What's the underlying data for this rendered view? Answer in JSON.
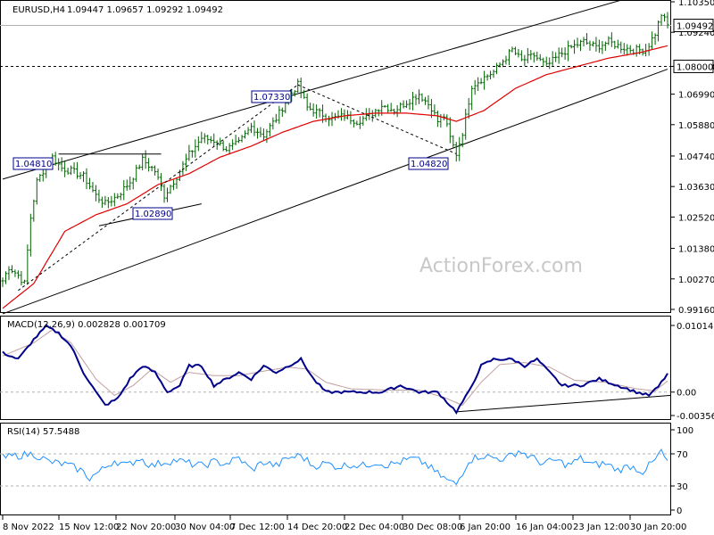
{
  "header": {
    "title": "EURUSD,H4",
    "ohlc": "1.09447 1.09657 1.09292 1.09492"
  },
  "watermark": "ActionForex.com",
  "price_panel": {
    "ticks": [
      "1.10350",
      "1.09240",
      "1.08000",
      "1.06990",
      "1.05880",
      "1.04740",
      "1.03630",
      "1.02520",
      "1.01380",
      "1.00270",
      "0.99160"
    ],
    "current_price": "1.09492",
    "level_line": "1.08000",
    "annotations": [
      "1.07330",
      "1.04810",
      "1.02890",
      "1.04820"
    ]
  },
  "macd_panel": {
    "label": "MACD(12,26,9) 0.002828 0.001709",
    "ticks": [
      "0.010145",
      "0.00",
      "-0.003563"
    ]
  },
  "rsi_panel": {
    "label": "RSI(14) 57.5488",
    "ticks": [
      "100",
      "70",
      "30",
      "0"
    ]
  },
  "x_axis": {
    "ticks": [
      "8 Nov 2022",
      "15 Nov 12:00",
      "22 Nov 20:00",
      "30 Nov 04:00",
      "7 Dec 12:00",
      "14 Dec 20:00",
      "22 Dec 04:00",
      "30 Dec 08:00",
      "6 Jan 20:00",
      "16 Jan 04:00",
      "23 Jan 12:00",
      "30 Jan 20:00"
    ]
  },
  "colors": {
    "candle": "#006400",
    "ma": "#e00000",
    "macd": "#00008b",
    "signal": "#c0a0a0",
    "rsi": "#1e90ff",
    "annotation": "#00008b"
  },
  "chart_data": [
    {
      "type": "candlestick",
      "title": "EURUSD,H4",
      "ylim": [
        0.9916,
        1.1035
      ],
      "x_start": "8 Nov 2022",
      "x_end": "30 Jan 20:00",
      "close_keypoints": [
        [
          0,
          1.002
        ],
        [
          2,
          1.007
        ],
        [
          5,
          1.004
        ],
        [
          7,
          1.001
        ],
        [
          9,
          1.025
        ],
        [
          11,
          1.038
        ],
        [
          13,
          1.042
        ],
        [
          16,
          1.047
        ],
        [
          19,
          1.043
        ],
        [
          22,
          1.042
        ],
        [
          26,
          1.04
        ],
        [
          30,
          1.033
        ],
        [
          33,
          1.03
        ],
        [
          37,
          1.033
        ],
        [
          41,
          1.038
        ],
        [
          45,
          1.046
        ],
        [
          49,
          1.042
        ],
        [
          52,
          1.033
        ],
        [
          56,
          1.04
        ],
        [
          60,
          1.048
        ],
        [
          64,
          1.054
        ],
        [
          68,
          1.053
        ],
        [
          72,
          1.05
        ],
        [
          76,
          1.052
        ],
        [
          80,
          1.058
        ],
        [
          84,
          1.055
        ],
        [
          88,
          1.061
        ],
        [
          92,
          1.069
        ],
        [
          95,
          1.0733
        ],
        [
          98,
          1.065
        ],
        [
          102,
          1.063
        ],
        [
          106,
          1.061
        ],
        [
          110,
          1.062
        ],
        [
          114,
          1.06
        ],
        [
          118,
          1.062
        ],
        [
          122,
          1.066
        ],
        [
          126,
          1.064
        ],
        [
          130,
          1.067
        ],
        [
          134,
          1.07
        ],
        [
          138,
          1.065
        ],
        [
          140,
          1.06
        ],
        [
          142,
          1.062
        ],
        [
          144,
          1.054
        ],
        [
          146,
          1.0482
        ],
        [
          148,
          1.056
        ],
        [
          151,
          1.073
        ],
        [
          155,
          1.076
        ],
        [
          158,
          1.078
        ],
        [
          161,
          1.082
        ],
        [
          164,
          1.086
        ],
        [
          167,
          1.082
        ],
        [
          171,
          1.084
        ],
        [
          175,
          1.08
        ],
        [
          179,
          1.084
        ],
        [
          183,
          1.087
        ],
        [
          187,
          1.089
        ],
        [
          191,
          1.087
        ],
        [
          195,
          1.089
        ],
        [
          199,
          1.087
        ],
        [
          203,
          1.086
        ],
        [
          207,
          1.086
        ],
        [
          210,
          1.092
        ],
        [
          212,
          1.099
        ],
        [
          214,
          1.0949
        ]
      ],
      "moving_average_keypoints": [
        [
          0,
          0.992
        ],
        [
          10,
          1.001
        ],
        [
          20,
          1.02
        ],
        [
          30,
          1.026
        ],
        [
          40,
          1.03
        ],
        [
          50,
          1.037
        ],
        [
          60,
          1.041
        ],
        [
          70,
          1.047
        ],
        [
          80,
          1.051
        ],
        [
          90,
          1.056
        ],
        [
          100,
          1.06
        ],
        [
          110,
          1.062
        ],
        [
          120,
          1.063
        ],
        [
          130,
          1.063
        ],
        [
          140,
          1.062
        ],
        [
          146,
          1.06
        ],
        [
          155,
          1.064
        ],
        [
          165,
          1.072
        ],
        [
          175,
          1.077
        ],
        [
          185,
          1.08
        ],
        [
          195,
          1.083
        ],
        [
          205,
          1.085
        ],
        [
          214,
          1.0875
        ]
      ],
      "channel": [
        {
          "from": [
            0,
            1.039
          ],
          "to": [
            214,
            1.109
          ]
        },
        {
          "from": [
            0,
            0.99
          ],
          "to": [
            214,
            1.079
          ]
        }
      ],
      "horizontal_levels": [
        1.0949,
        1.08
      ],
      "annotations": [
        {
          "label": "1.07330",
          "x": 95,
          "y": 1.0733
        },
        {
          "label": "1.04810",
          "x": 16,
          "y": 1.0481
        },
        {
          "label": "1.02890",
          "x": 42,
          "y": 1.0289
        },
        {
          "label": "1.04820",
          "x": 146,
          "y": 1.0482
        }
      ]
    },
    {
      "type": "line",
      "title": "MACD(12,26,9) 0.002828 0.001709",
      "ylim": [
        -0.003563,
        0.010145
      ],
      "series": [
        {
          "name": "MACD",
          "values": [
            [
              0,
              0.006
            ],
            [
              5,
              0.005
            ],
            [
              10,
              0.008
            ],
            [
              14,
              0.01
            ],
            [
              18,
              0.009
            ],
            [
              22,
              0.007
            ],
            [
              26,
              0.003
            ],
            [
              30,
              0.0
            ],
            [
              33,
              -0.002
            ],
            [
              37,
              -0.001
            ],
            [
              41,
              0.002
            ],
            [
              45,
              0.004
            ],
            [
              49,
              0.003
            ],
            [
              53,
              0.0
            ],
            [
              57,
              0.001
            ],
            [
              60,
              0.004
            ],
            [
              64,
              0.004
            ],
            [
              68,
              0.001
            ],
            [
              72,
              0.002
            ],
            [
              76,
              0.003
            ],
            [
              80,
              0.002
            ],
            [
              84,
              0.004
            ],
            [
              88,
              0.003
            ],
            [
              92,
              0.004
            ],
            [
              96,
              0.005
            ],
            [
              100,
              0.002
            ],
            [
              104,
              0.0
            ],
            [
              110,
              0.0
            ],
            [
              116,
              0.0
            ],
            [
              122,
              0.0
            ],
            [
              128,
              0.001
            ],
            [
              134,
              0.0
            ],
            [
              140,
              0.0
            ],
            [
              144,
              -0.002
            ],
            [
              146,
              -0.003
            ],
            [
              150,
              0.0
            ],
            [
              154,
              0.004
            ],
            [
              158,
              0.005
            ],
            [
              164,
              0.005
            ],
            [
              168,
              0.004
            ],
            [
              172,
              0.005
            ],
            [
              176,
              0.003
            ],
            [
              180,
              0.001
            ],
            [
              186,
              0.001
            ],
            [
              192,
              0.002
            ],
            [
              198,
              0.001
            ],
            [
              204,
              0.0
            ],
            [
              208,
              -0.0005
            ],
            [
              211,
              0.0008
            ],
            [
              214,
              0.0028
            ]
          ]
        },
        {
          "name": "Signal",
          "values": [
            [
              0,
              0.0055
            ],
            [
              10,
              0.0075
            ],
            [
              16,
              0.0095
            ],
            [
              22,
              0.0075
            ],
            [
              30,
              0.002
            ],
            [
              36,
              -0.0005
            ],
            [
              42,
              0.001
            ],
            [
              48,
              0.0035
            ],
            [
              54,
              0.0015
            ],
            [
              60,
              0.003
            ],
            [
              68,
              0.0025
            ],
            [
              76,
              0.0025
            ],
            [
              84,
              0.0032
            ],
            [
              92,
              0.0038
            ],
            [
              98,
              0.0035
            ],
            [
              104,
              0.0015
            ],
            [
              112,
              0.0005
            ],
            [
              124,
              0.0003
            ],
            [
              134,
              0.0003
            ],
            [
              142,
              -0.0008
            ],
            [
              148,
              -0.002
            ],
            [
              154,
              0.0015
            ],
            [
              160,
              0.0042
            ],
            [
              168,
              0.0045
            ],
            [
              176,
              0.0038
            ],
            [
              184,
              0.0018
            ],
            [
              194,
              0.0015
            ],
            [
              204,
              0.0005
            ],
            [
              210,
              0.0002
            ],
            [
              214,
              0.0017
            ]
          ]
        }
      ],
      "zero_line": true
    },
    {
      "type": "line",
      "title": "RSI(14) 57.5488",
      "ylim": [
        0,
        100
      ],
      "series": [
        {
          "name": "RSI",
          "values": [
            [
              0,
              65
            ],
            [
              5,
              68
            ],
            [
              10,
              70
            ],
            [
              15,
              60
            ],
            [
              20,
              57
            ],
            [
              25,
              50
            ],
            [
              28,
              40
            ],
            [
              32,
              50
            ],
            [
              36,
              62
            ],
            [
              40,
              55
            ],
            [
              44,
              65
            ],
            [
              48,
              55
            ],
            [
              52,
              60
            ],
            [
              56,
              62
            ],
            [
              60,
              58
            ],
            [
              64,
              55
            ],
            [
              68,
              60
            ],
            [
              72,
              58
            ],
            [
              76,
              65
            ],
            [
              80,
              50
            ],
            [
              84,
              60
            ],
            [
              88,
              55
            ],
            [
              92,
              65
            ],
            [
              96,
              68
            ],
            [
              100,
              55
            ],
            [
              104,
              58
            ],
            [
              108,
              54
            ],
            [
              112,
              57
            ],
            [
              116,
              55
            ],
            [
              120,
              60
            ],
            [
              124,
              56
            ],
            [
              128,
              60
            ],
            [
              132,
              64
            ],
            [
              136,
              58
            ],
            [
              140,
              45
            ],
            [
              142,
              40
            ],
            [
              144,
              35
            ],
            [
              146,
              32
            ],
            [
              150,
              62
            ],
            [
              154,
              68
            ],
            [
              158,
              65
            ],
            [
              162,
              64
            ],
            [
              166,
              74
            ],
            [
              170,
              66
            ],
            [
              174,
              58
            ],
            [
              178,
              62
            ],
            [
              182,
              56
            ],
            [
              186,
              64
            ],
            [
              190,
              56
            ],
            [
              194,
              58
            ],
            [
              198,
              50
            ],
            [
              202,
              55
            ],
            [
              206,
              48
            ],
            [
              210,
              62
            ],
            [
              212,
              74
            ],
            [
              214,
              57.5
            ]
          ]
        }
      ],
      "levels": [
        70,
        30
      ]
    }
  ]
}
